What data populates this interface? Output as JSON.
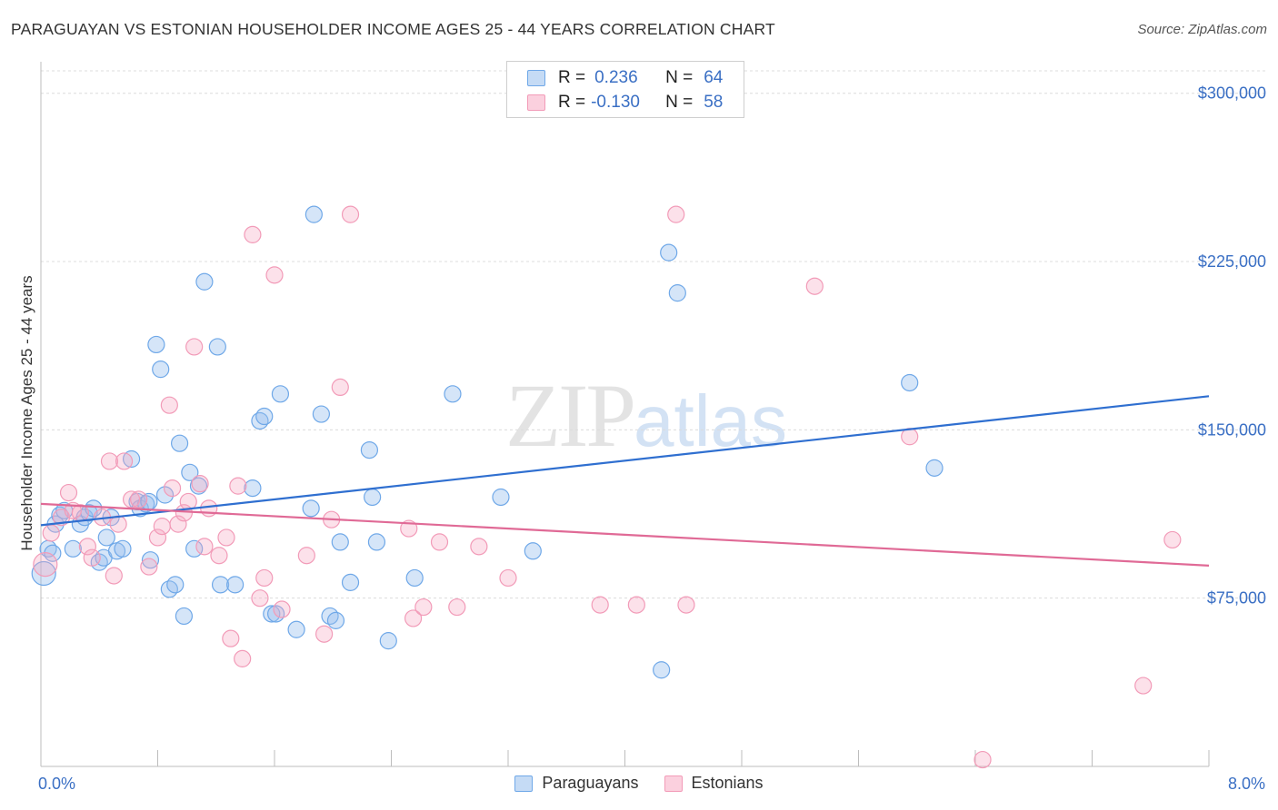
{
  "header": {
    "title": "PARAGUAYAN VS ESTONIAN HOUSEHOLDER INCOME AGES 25 - 44 YEARS CORRELATION CHART",
    "source": "Source: ZipAtlas.com"
  },
  "watermark": {
    "zip": "ZIP",
    "atlas": "atlas"
  },
  "stats": {
    "row1": {
      "r_label": "R =",
      "r_value": "0.236",
      "n_label": "N =",
      "n_value": "64"
    },
    "row2": {
      "r_label": "R =",
      "r_value": "-0.130",
      "n_label": "N =",
      "n_value": "58"
    }
  },
  "legend": {
    "series1": "Paraguayans",
    "series2": "Estonians"
  },
  "chart_data": {
    "type": "scatter",
    "title": "PARAGUAYAN VS ESTONIAN HOUSEHOLDER INCOME AGES 25 - 44 YEARS CORRELATION CHART",
    "ylabel": "Householder Income Ages 25 - 44 years",
    "xlabel": "",
    "xlim": [
      0,
      8
    ],
    "ylim": [
      0,
      310000
    ],
    "x_tick_labels": [
      "0.0%",
      "8.0%"
    ],
    "y_ticks": [
      75000,
      150000,
      225000,
      300000
    ],
    "y_tick_labels": [
      "$75,000",
      "$150,000",
      "$225,000",
      "$300,000"
    ],
    "grid": true,
    "legend_position": "bottom",
    "colors": {
      "Paraguayans": "#6fa8e8",
      "Estonians": "#f29bb8",
      "Paraguayans_line": "#2f6fd0",
      "Estonians_line": "#e06a96"
    },
    "series": [
      {
        "name": "Paraguayans",
        "r": 0.236,
        "n": 64,
        "trend": [
          [
            0,
            107500
          ],
          [
            8,
            165000
          ]
        ],
        "points": [
          [
            0.02,
            86000
          ],
          [
            0.05,
            97000
          ],
          [
            0.08,
            95000
          ],
          [
            0.1,
            108000
          ],
          [
            0.13,
            112000
          ],
          [
            0.16,
            114000
          ],
          [
            0.22,
            97000
          ],
          [
            0.27,
            108000
          ],
          [
            0.3,
            111000
          ],
          [
            0.33,
            113000
          ],
          [
            0.36,
            115000
          ],
          [
            0.4,
            91000
          ],
          [
            0.43,
            93000
          ],
          [
            0.45,
            102000
          ],
          [
            0.48,
            111000
          ],
          [
            0.52,
            96000
          ],
          [
            0.56,
            97000
          ],
          [
            0.62,
            137000
          ],
          [
            0.66,
            118000
          ],
          [
            0.68,
            115000
          ],
          [
            0.72,
            117000
          ],
          [
            0.74,
            118000
          ],
          [
            0.75,
            92000
          ],
          [
            0.79,
            188000
          ],
          [
            0.82,
            177000
          ],
          [
            0.85,
            121000
          ],
          [
            0.88,
            79000
          ],
          [
            0.92,
            81000
          ],
          [
            0.95,
            144000
          ],
          [
            0.98,
            67000
          ],
          [
            1.02,
            131000
          ],
          [
            1.05,
            97000
          ],
          [
            1.08,
            125000
          ],
          [
            1.12,
            216000
          ],
          [
            1.21,
            187000
          ],
          [
            1.23,
            81000
          ],
          [
            1.33,
            81000
          ],
          [
            1.45,
            124000
          ],
          [
            1.5,
            154000
          ],
          [
            1.53,
            156000
          ],
          [
            1.58,
            68000
          ],
          [
            1.61,
            68000
          ],
          [
            1.64,
            166000
          ],
          [
            1.75,
            61000
          ],
          [
            1.85,
            115000
          ],
          [
            1.87,
            246000
          ],
          [
            1.92,
            157000
          ],
          [
            1.98,
            67000
          ],
          [
            2.02,
            65000
          ],
          [
            2.05,
            100000
          ],
          [
            2.12,
            82000
          ],
          [
            2.25,
            141000
          ],
          [
            2.27,
            120000
          ],
          [
            2.3,
            100000
          ],
          [
            2.38,
            56000
          ],
          [
            2.56,
            84000
          ],
          [
            2.82,
            166000
          ],
          [
            3.15,
            120000
          ],
          [
            3.37,
            96000
          ],
          [
            4.25,
            43000
          ],
          [
            4.3,
            229000
          ],
          [
            4.36,
            211000
          ],
          [
            5.95,
            171000
          ],
          [
            6.12,
            133000
          ]
        ]
      },
      {
        "name": "Estonians",
        "r": -0.13,
        "n": 58,
        "trend": [
          [
            0,
            117000
          ],
          [
            8,
            89500
          ]
        ],
        "points": [
          [
            0.03,
            90000
          ],
          [
            0.07,
            104000
          ],
          [
            0.14,
            111000
          ],
          [
            0.19,
            122000
          ],
          [
            0.22,
            114000
          ],
          [
            0.27,
            113000
          ],
          [
            0.32,
            98000
          ],
          [
            0.35,
            93000
          ],
          [
            0.42,
            111000
          ],
          [
            0.47,
            136000
          ],
          [
            0.5,
            85000
          ],
          [
            0.53,
            108000
          ],
          [
            0.57,
            136000
          ],
          [
            0.62,
            119000
          ],
          [
            0.67,
            119000
          ],
          [
            0.74,
            89000
          ],
          [
            0.8,
            102000
          ],
          [
            0.83,
            107000
          ],
          [
            0.88,
            161000
          ],
          [
            0.9,
            124000
          ],
          [
            0.94,
            108000
          ],
          [
            0.98,
            113000
          ],
          [
            1.01,
            118000
          ],
          [
            1.05,
            187000
          ],
          [
            1.09,
            126000
          ],
          [
            1.12,
            98000
          ],
          [
            1.15,
            115000
          ],
          [
            1.22,
            94000
          ],
          [
            1.27,
            102000
          ],
          [
            1.3,
            57000
          ],
          [
            1.35,
            125000
          ],
          [
            1.38,
            48000
          ],
          [
            1.45,
            237000
          ],
          [
            1.5,
            75000
          ],
          [
            1.53,
            84000
          ],
          [
            1.6,
            219000
          ],
          [
            1.65,
            70000
          ],
          [
            1.82,
            94000
          ],
          [
            1.94,
            59000
          ],
          [
            1.99,
            110000
          ],
          [
            2.05,
            169000
          ],
          [
            2.12,
            246000
          ],
          [
            2.52,
            106000
          ],
          [
            2.55,
            66000
          ],
          [
            2.62,
            71000
          ],
          [
            2.73,
            100000
          ],
          [
            2.85,
            71000
          ],
          [
            3.0,
            98000
          ],
          [
            3.2,
            84000
          ],
          [
            3.83,
            72000
          ],
          [
            4.08,
            72000
          ],
          [
            4.35,
            246000
          ],
          [
            4.42,
            72000
          ],
          [
            5.3,
            214000
          ],
          [
            5.95,
            147000
          ],
          [
            6.45,
            3000
          ],
          [
            7.55,
            36000
          ],
          [
            7.75,
            101000
          ]
        ]
      }
    ]
  }
}
